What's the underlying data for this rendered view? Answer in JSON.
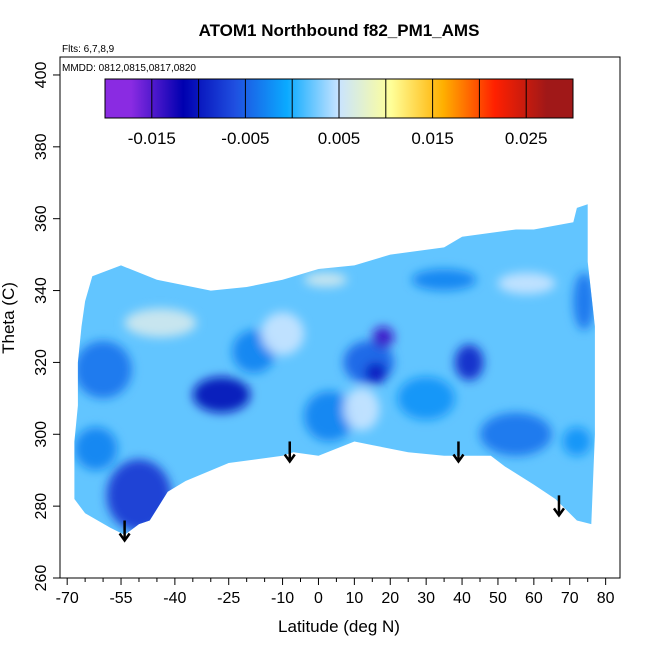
{
  "chart_data": {
    "type": "heatmap",
    "title": "ATOM1 Northbound f82_PM1_AMS",
    "notes": {
      "flights": "Flts: 6,7,8,9",
      "dates": "MMDD: 0812,0815,0817,0820"
    },
    "xlabel": "Latitude (deg N)",
    "ylabel": "Theta (C)",
    "xlim": [
      -72,
      84
    ],
    "ylim": [
      260,
      405
    ],
    "x_ticks": [
      -70,
      -55,
      -40,
      -25,
      -10,
      0,
      10,
      20,
      30,
      40,
      50,
      60,
      70,
      80
    ],
    "x_tick_labels": [
      "-70",
      "-55",
      "-40",
      "-25",
      "-10",
      "0",
      "10",
      "20",
      "30",
      "40",
      "50",
      "60",
      "70",
      "80"
    ],
    "x_minor_ticks": [
      -65,
      -60,
      -50,
      -45,
      -35,
      -30,
      -20,
      -15,
      -5,
      5,
      15,
      25,
      35,
      45,
      55,
      65,
      75
    ],
    "y_ticks": [
      260,
      280,
      300,
      320,
      340,
      360,
      380,
      400
    ],
    "y_tick_labels": [
      "260",
      "280",
      "300",
      "320",
      "340",
      "360",
      "380",
      "400"
    ],
    "colorbar": {
      "range": [
        -0.02,
        0.03
      ],
      "tick_values": [
        -0.015,
        -0.005,
        0.005,
        0.015,
        0.025
      ],
      "tick_labels": [
        "-0.015",
        "-0.005",
        "0.005",
        "0.015",
        "0.025"
      ],
      "boundaries": [
        -0.015,
        -0.01,
        -0.005,
        0,
        0.005,
        0.01,
        0.015,
        0.02,
        0.025
      ],
      "colors": [
        "#8a2be2",
        "#0000b0",
        "#1f4fe0",
        "#0aaaff",
        "#c9e4ff",
        "#ffff99",
        "#ffb000",
        "#ff2000",
        "#a01818"
      ]
    },
    "value_range_shown": [
      -0.015,
      0.006
    ],
    "background_value": 0.002,
    "domain_outline": [
      [
        -54,
        272
      ],
      [
        -50,
        275
      ],
      [
        -47,
        276
      ],
      [
        -42,
        284
      ],
      [
        -37,
        287
      ],
      [
        -25,
        292
      ],
      [
        -10,
        294
      ],
      [
        -7,
        295
      ],
      [
        0,
        294
      ],
      [
        10,
        298
      ],
      [
        15,
        297
      ],
      [
        25,
        295
      ],
      [
        35,
        294
      ],
      [
        40,
        294
      ],
      [
        48,
        294
      ],
      [
        52,
        291
      ],
      [
        60,
        286
      ],
      [
        66,
        282
      ],
      [
        72,
        276
      ],
      [
        76,
        275
      ],
      [
        77,
        300
      ],
      [
        77,
        330
      ],
      [
        75,
        348
      ],
      [
        75,
        364
      ],
      [
        72,
        363
      ],
      [
        71,
        359
      ],
      [
        60,
        357
      ],
      [
        55,
        357
      ],
      [
        40,
        355
      ],
      [
        35,
        352
      ],
      [
        20,
        350
      ],
      [
        10,
        347
      ],
      [
        0,
        346
      ],
      [
        -10,
        343
      ],
      [
        -20,
        341
      ],
      [
        -30,
        340
      ],
      [
        -45,
        343
      ],
      [
        -55,
        347
      ],
      [
        -63,
        344
      ],
      [
        -65,
        337
      ],
      [
        -66,
        330
      ],
      [
        -67,
        320
      ],
      [
        -67,
        308
      ],
      [
        -68,
        298
      ],
      [
        -68,
        290
      ],
      [
        -68,
        282
      ],
      [
        -65,
        278
      ],
      [
        -58,
        274
      ]
    ],
    "features": [
      {
        "lat": -50,
        "theta": 283,
        "value": -0.008,
        "radius": [
          9,
          10
        ]
      },
      {
        "lat": -27,
        "theta": 311,
        "value": -0.011,
        "radius": [
          8,
          5
        ]
      },
      {
        "lat": -60,
        "theta": 318,
        "value": -0.004,
        "radius": [
          8,
          8
        ]
      },
      {
        "lat": -62,
        "theta": 296,
        "value": -0.003,
        "radius": [
          6,
          6
        ]
      },
      {
        "lat": -44,
        "theta": 331,
        "value": 0.006,
        "radius": [
          10,
          4
        ]
      },
      {
        "lat": -18,
        "theta": 323,
        "value": -0.003,
        "radius": [
          6,
          6
        ]
      },
      {
        "lat": -10,
        "theta": 328,
        "value": 0.005,
        "radius": [
          6,
          6
        ]
      },
      {
        "lat": 3,
        "theta": 305,
        "value": -0.003,
        "radius": [
          7,
          7
        ]
      },
      {
        "lat": 12,
        "theta": 307,
        "value": 0.005,
        "radius": [
          5,
          6
        ]
      },
      {
        "lat": 14,
        "theta": 320,
        "value": -0.005,
        "radius": [
          7,
          6
        ]
      },
      {
        "lat": 18,
        "theta": 327,
        "value": -0.014,
        "radius": [
          3,
          3
        ]
      },
      {
        "lat": 16,
        "theta": 317,
        "value": -0.01,
        "radius": [
          3,
          3
        ]
      },
      {
        "lat": 42,
        "theta": 320,
        "value": -0.009,
        "radius": [
          4,
          5
        ]
      },
      {
        "lat": 30,
        "theta": 310,
        "value": -0.002,
        "radius": [
          8,
          6
        ]
      },
      {
        "lat": 55,
        "theta": 300,
        "value": -0.004,
        "radius": [
          10,
          6
        ]
      },
      {
        "lat": 72,
        "theta": 298,
        "value": -0.002,
        "radius": [
          4,
          4
        ]
      },
      {
        "lat": 74,
        "theta": 337,
        "value": -0.004,
        "radius": [
          3,
          8
        ]
      },
      {
        "lat": 58,
        "theta": 342,
        "value": 0.005,
        "radius": [
          8,
          3
        ]
      },
      {
        "lat": 2,
        "theta": 343,
        "value": 0.006,
        "radius": [
          6,
          2
        ]
      },
      {
        "lat": 35,
        "theta": 343,
        "value": -0.003,
        "radius": [
          9,
          3
        ]
      }
    ],
    "arrows": [
      {
        "lat": -54,
        "theta": 276
      },
      {
        "lat": -8,
        "theta": 298
      },
      {
        "lat": 39,
        "theta": 298
      },
      {
        "lat": 67,
        "theta": 283
      }
    ],
    "grid": false,
    "legend": "colorbar top"
  }
}
